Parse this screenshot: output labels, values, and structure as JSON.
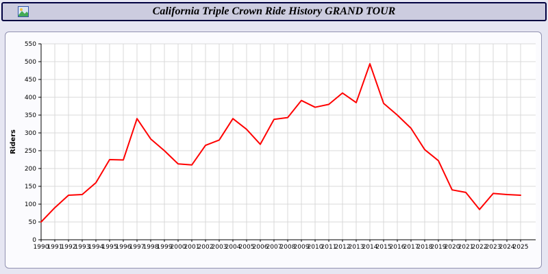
{
  "header": {
    "title": "California Triple Crown Ride History GRAND TOUR",
    "icon": "landscape-photo-icon"
  },
  "colors": {
    "page_bg": "#e6e6f2",
    "header_bg": "#ccccdf",
    "header_border": "#000040",
    "panel_bg": "#fbfbfe",
    "panel_border": "#9090b0",
    "plot_bg": "#ffffff",
    "grid": "#d9d9d9",
    "axis": "#000000",
    "line": "#ff0000"
  },
  "chart_data": {
    "type": "line",
    "title": "California Triple Crown Ride History GRAND TOUR",
    "xlabel": "",
    "ylabel": "Riders",
    "ylim": [
      0,
      550
    ],
    "ytick_step": 50,
    "grid": true,
    "legend": "none",
    "series_color": "#ff0000",
    "x": [
      1990,
      1991,
      1992,
      1993,
      1994,
      1995,
      1996,
      1997,
      1998,
      1999,
      2000,
      2001,
      2002,
      2003,
      2004,
      2005,
      2006,
      2007,
      2008,
      2009,
      2010,
      2011,
      2012,
      2013,
      2014,
      2015,
      2016,
      2017,
      2018,
      2019,
      2020,
      2021,
      2022,
      2023,
      2024,
      2025
    ],
    "values": [
      50,
      90,
      125,
      127,
      160,
      225,
      224,
      340,
      283,
      250,
      213,
      210,
      265,
      280,
      340,
      310,
      268,
      338,
      343,
      391,
      372,
      380,
      412,
      385,
      494,
      383,
      350,
      313,
      253,
      222,
      140,
      133,
      85,
      130,
      127,
      125
    ]
  }
}
